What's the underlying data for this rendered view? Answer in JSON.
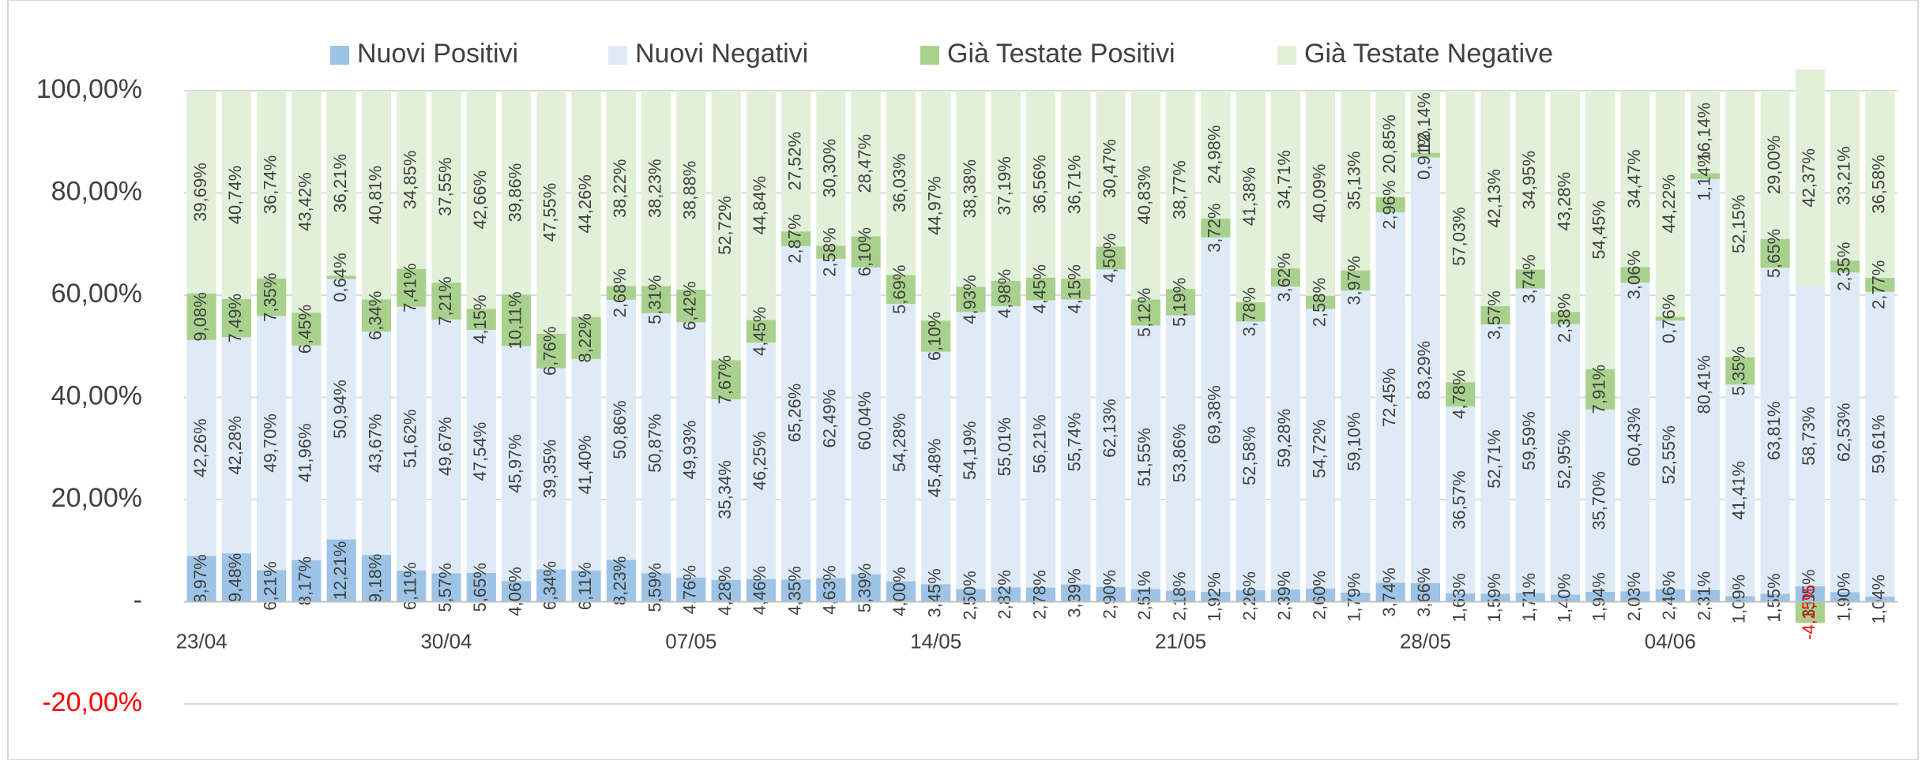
{
  "chart_data": {
    "type": "stacked_bar",
    "categories": [
      "23/04",
      null,
      null,
      null,
      null,
      null,
      null,
      "30/04",
      null,
      null,
      null,
      null,
      null,
      null,
      "07/05",
      null,
      null,
      null,
      null,
      null,
      null,
      "14/05",
      null,
      null,
      null,
      null,
      null,
      null,
      "21/05",
      null,
      null,
      null,
      null,
      null,
      null,
      "28/05",
      null,
      null,
      null,
      null,
      null,
      null,
      "04/06",
      null,
      null,
      null,
      null,
      null,
      null
    ],
    "series": [
      {
        "name": "Nuovi Positivi",
        "color": "#9dc3e6",
        "values": [
          8.97,
          9.48,
          6.21,
          8.17,
          12.21,
          9.18,
          6.11,
          5.57,
          5.65,
          4.06,
          6.34,
          6.11,
          8.23,
          5.59,
          4.76,
          4.28,
          4.46,
          4.35,
          4.63,
          5.39,
          4.0,
          3.45,
          2.5,
          2.82,
          2.78,
          3.39,
          2.9,
          2.51,
          2.18,
          1.92,
          2.26,
          2.39,
          2.6,
          1.79,
          3.74,
          3.66,
          1.63,
          1.59,
          1.71,
          1.4,
          1.94,
          2.03,
          2.46,
          2.31,
          1.09,
          1.55,
          3.05,
          1.9,
          1.04
        ],
        "value_labels": [
          "8,97%",
          "9,48%",
          "6,21%",
          "8,17%",
          "12,21%",
          "9,18%",
          "6,11%",
          "5,57%",
          "5,65%",
          "4,06%",
          "6,34%",
          "6,11%",
          "8,23%",
          "5,59%",
          "4,76%",
          "4,28%",
          "4,46%",
          "4,35%",
          "4,63%",
          "5,39%",
          "4,00%",
          "3,45%",
          "2,50%",
          "2,82%",
          "2,78%",
          "3,39%",
          "2,90%",
          "2,51%",
          "2,18%",
          "1,92%",
          "2,26%",
          "2,39%",
          "2,60%",
          "1,79%",
          "3,74%",
          "3,66%",
          "1,63%",
          "1,59%",
          "1,71%",
          "1,40%",
          "1,94%",
          "2,03%",
          "2,46%",
          "2,31%",
          "1,09%",
          "1,55%",
          "3,05%",
          "1,90%",
          "1,04%"
        ]
      },
      {
        "name": "Nuovi Negativi",
        "color": "#deebf7",
        "values": [
          42.26,
          42.28,
          49.7,
          41.96,
          50.94,
          43.67,
          51.62,
          49.67,
          47.54,
          45.97,
          39.35,
          41.4,
          50.86,
          50.87,
          49.93,
          35.34,
          46.25,
          65.26,
          62.49,
          60.04,
          54.28,
          45.48,
          54.19,
          55.01,
          56.21,
          55.74,
          62.13,
          51.55,
          53.86,
          69.38,
          52.58,
          59.28,
          54.72,
          59.1,
          72.45,
          83.29,
          36.57,
          52.71,
          59.59,
          52.95,
          35.7,
          60.43,
          52.55,
          80.41,
          41.41,
          63.81,
          58.73,
          62.53,
          59.61
        ],
        "value_labels": [
          "42,26%",
          "42,28%",
          "49,70%",
          "41,96%",
          "50,94%",
          "43,67%",
          "51,62%",
          "49,67%",
          "47,54%",
          "45,97%",
          "39,35%",
          "41,40%",
          "50,86%",
          "50,87%",
          "49,93%",
          "35,34%",
          "46,25%",
          "65,26%",
          "62,49%",
          "60,04%",
          "54,28%",
          "45,48%",
          "54,19%",
          "55,01%",
          "56,21%",
          "55,74%",
          "62,13%",
          "51,55%",
          "53,86%",
          "69,38%",
          "52,58%",
          "59,28%",
          "54,72%",
          "59,10%",
          "72,45%",
          "83,29%",
          "36,57%",
          "52,71%",
          "59,59%",
          "52,95%",
          "35,70%",
          "60,43%",
          "52,55%",
          "80,41%",
          "41,41%",
          "63,81%",
          "58,73%",
          "62,53%",
          "59,61%"
        ]
      },
      {
        "name": "Già Testate Positivi",
        "color": "#a9d18e",
        "values": [
          9.08,
          7.49,
          7.35,
          6.45,
          0.64,
          6.34,
          7.41,
          7.21,
          4.15,
          10.11,
          6.76,
          8.22,
          2.68,
          5.31,
          6.42,
          7.67,
          4.45,
          2.87,
          2.58,
          6.1,
          5.69,
          6.1,
          4.93,
          4.98,
          4.45,
          4.15,
          4.5,
          5.12,
          5.19,
          3.72,
          3.78,
          3.62,
          2.58,
          3.97,
          2.96,
          0.91,
          4.78,
          3.57,
          3.74,
          2.38,
          7.91,
          3.06,
          0.76,
          1.14,
          5.35,
          5.65,
          -4.15,
          2.35,
          2.77
        ],
        "value_labels": [
          "9,08%",
          "7,49%",
          "7,35%",
          "6,45%",
          "0,64%",
          "6,34%",
          "7,41%",
          "7,21%",
          "4,15%",
          "10,11%",
          "6,76%",
          "8,22%",
          "2,68%",
          "5,31%",
          "6,42%",
          "7,67%",
          "4,45%",
          "2,87%",
          "2,58%",
          "6,10%",
          "5,69%",
          "6,10%",
          "4,93%",
          "4,98%",
          "4,45%",
          "4,15%",
          "4,50%",
          "5,12%",
          "5,19%",
          "3,72%",
          "3,78%",
          "3,62%",
          "2,58%",
          "3,97%",
          "2,96%",
          "0,91%",
          "4,78%",
          "3,57%",
          "3,74%",
          "2,38%",
          "7,91%",
          "3,06%",
          "0,76%",
          "1,14%",
          "5,35%",
          "5,65%",
          "-4,15%",
          "2,35%",
          "2,77%"
        ]
      },
      {
        "name": "Già Testate Negative",
        "color": "#e2f0d9",
        "values": [
          39.69,
          40.74,
          36.74,
          43.42,
          36.21,
          40.81,
          34.85,
          37.55,
          42.66,
          39.86,
          47.55,
          44.26,
          38.22,
          38.23,
          38.88,
          52.72,
          44.84,
          27.52,
          30.3,
          28.47,
          36.03,
          44.97,
          38.38,
          37.19,
          36.56,
          36.71,
          30.47,
          40.83,
          38.77,
          24.98,
          41.38,
          34.71,
          40.09,
          35.13,
          20.85,
          12.14,
          57.03,
          42.13,
          34.95,
          43.28,
          54.45,
          34.47,
          44.22,
          16.14,
          52.15,
          29.0,
          42.37,
          33.21,
          36.58
        ],
        "value_labels": [
          "39,69%",
          "40,74%",
          "36,74%",
          "43,42%",
          "36,21%",
          "40,81%",
          "34,85%",
          "37,55%",
          "42,66%",
          "39,86%",
          "47,55%",
          "44,26%",
          "38,22%",
          "38,23%",
          "38,88%",
          "52,72%",
          "44,84%",
          "27,52%",
          "30,30%",
          "28,47%",
          "36,03%",
          "44,97%",
          "38,38%",
          "37,19%",
          "36,56%",
          "36,71%",
          "30,47%",
          "40,83%",
          "38,77%",
          "24,98%",
          "41,38%",
          "34,71%",
          "40,09%",
          "35,13%",
          "20,85%",
          "12,14%",
          "57,03%",
          "42,13%",
          "34,95%",
          "43,28%",
          "54,45%",
          "34,47%",
          "44,22%",
          "16,14%",
          "52,15%",
          "29,00%",
          "42,37%",
          "33,21%",
          "36,58%"
        ]
      }
    ],
    "ylim": [
      -20,
      100
    ],
    "yticks": [
      {
        "value": -20,
        "label": "-20,00%"
      },
      {
        "value": 0,
        "label": "-"
      },
      {
        "value": 20,
        "label": "20,00%"
      },
      {
        "value": 40,
        "label": "40,00%"
      },
      {
        "value": 60,
        "label": "60,00%"
      },
      {
        "value": 80,
        "label": "80,00%"
      },
      {
        "value": 100,
        "label": "100,00%"
      }
    ],
    "grid": true,
    "legend": "top",
    "negative_color": "#ff0000"
  }
}
